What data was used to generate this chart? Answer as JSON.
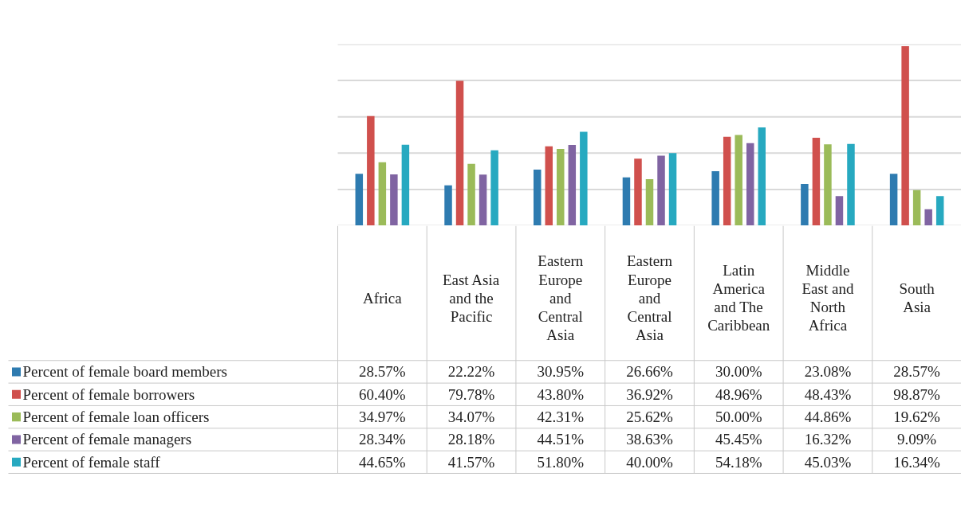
{
  "chart_data": {
    "type": "bar",
    "categories": [
      "Africa",
      "East Asia and the Pacific",
      "Eastern Europe and Central Asia",
      "Eastern Europe and Central Asia",
      "Latin America and The Caribbean",
      "Middle East and North Africa",
      "South Asia"
    ],
    "series": [
      {
        "name": "Percent of female board members",
        "color": "#2e7bb0",
        "values": [
          28.57,
          22.22,
          30.95,
          26.66,
          30.0,
          23.08,
          28.57
        ],
        "value_labels": [
          "28.57%",
          "22.22%",
          "30.95%",
          "26.66%",
          "30.00%",
          "23.08%",
          "28.57%"
        ]
      },
      {
        "name": "Percent of female borrowers",
        "color": "#d0504d",
        "values": [
          60.4,
          79.78,
          43.8,
          36.92,
          48.96,
          48.43,
          98.87
        ],
        "value_labels": [
          "60.40%",
          "79.78%",
          "43.80%",
          "36.92%",
          "48.96%",
          "48.43%",
          "98.87%"
        ]
      },
      {
        "name": "Percent of female loan officers",
        "color": "#9bbb59",
        "values": [
          34.97,
          34.07,
          42.31,
          25.62,
          50.0,
          44.86,
          19.62
        ],
        "value_labels": [
          "34.97%",
          "34.07%",
          "42.31%",
          "25.62%",
          "50.00%",
          "44.86%",
          "19.62%"
        ]
      },
      {
        "name": "Percent of female managers",
        "color": "#8064a2",
        "values": [
          28.34,
          28.18,
          44.51,
          38.63,
          45.45,
          16.32,
          9.09
        ],
        "value_labels": [
          "28.34%",
          "28.18%",
          "44.51%",
          "38.63%",
          "45.45%",
          "16.32%",
          "9.09%"
        ]
      },
      {
        "name": "Percent of female staff",
        "color": "#27a9c0",
        "values": [
          44.65,
          41.57,
          51.8,
          40.0,
          54.18,
          45.03,
          16.34
        ],
        "value_labels": [
          "44.65%",
          "41.57%",
          "51.80%",
          "40.00%",
          "54.18%",
          "45.03%",
          "16.34%"
        ]
      }
    ],
    "ylim": [
      0,
      100
    ],
    "yticks": [
      {
        "value": 0,
        "label": null
      },
      {
        "value": 20,
        "label": null
      },
      {
        "value": 40,
        "label": null
      },
      {
        "value": 60,
        "label": null
      },
      {
        "value": 80,
        "label": null
      },
      {
        "value": 100,
        "label": null
      }
    ],
    "grid": "y",
    "legend": "bottom left"
  }
}
